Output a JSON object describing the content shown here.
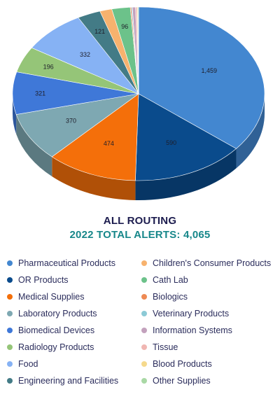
{
  "chart_data": {
    "type": "pie",
    "title": "ALL ROUTING",
    "subtitle": "2022 TOTAL ALERTS: 4,065",
    "legend_position": "bottom",
    "slices": [
      {
        "name": "Pharmaceutical Products",
        "value": 1459,
        "label": "1,459",
        "color": "#4387d0"
      },
      {
        "name": "OR Products",
        "value": 590,
        "label": "590",
        "color": "#0a4b8c"
      },
      {
        "name": "Medical Supplies",
        "value": 474,
        "label": "474",
        "color": "#f46f0a"
      },
      {
        "name": "Laboratory Products",
        "value": 370,
        "label": "370",
        "color": "#7ea8b2"
      },
      {
        "name": "Biomedical Devices",
        "value": 321,
        "label": "321",
        "color": "#3f78d8"
      },
      {
        "name": "Radiology Products",
        "value": 196,
        "label": "196",
        "color": "#95c578"
      },
      {
        "name": "Food",
        "value": 332,
        "label": "332",
        "color": "#86b2f4"
      },
      {
        "name": "Engineering and Facilities",
        "value": 121,
        "label": "121",
        "color": "#437b86"
      },
      {
        "name": "Children's Consumer Products",
        "value": 63,
        "label": "",
        "color": "#f7b26e"
      },
      {
        "name": "Cath Lab",
        "value": 96,
        "label": "96",
        "color": "#6cc28a"
      },
      {
        "name": "Biologics",
        "value": 6,
        "label": "",
        "color": "#ee8a54"
      },
      {
        "name": "Veterinary Products",
        "value": 5,
        "label": "",
        "color": "#8ccad6"
      },
      {
        "name": "Information Systems",
        "value": 16,
        "label": "",
        "color": "#c3a1bd"
      },
      {
        "name": "Tissue",
        "value": 8,
        "label": "",
        "color": "#f0b6b2"
      },
      {
        "name": "Blood Products",
        "value": 4,
        "label": "",
        "color": "#f5d98c"
      },
      {
        "name": "Other Supplies",
        "value": 4,
        "label": "",
        "color": "#a9d8a5"
      }
    ]
  },
  "legend_columns": [
    [
      "Pharmaceutical Products",
      "OR Products",
      "Medical Supplies",
      "Laboratory Products",
      "Biomedical Devices",
      "Radiology Products",
      "Food",
      "Engineering and Facilities"
    ],
    [
      "Children's Consumer Products",
      "Cath Lab",
      "Biologics",
      "Veterinary Products",
      "Information Systems",
      "Tissue",
      "Blood Products",
      "Other Supplies"
    ]
  ]
}
